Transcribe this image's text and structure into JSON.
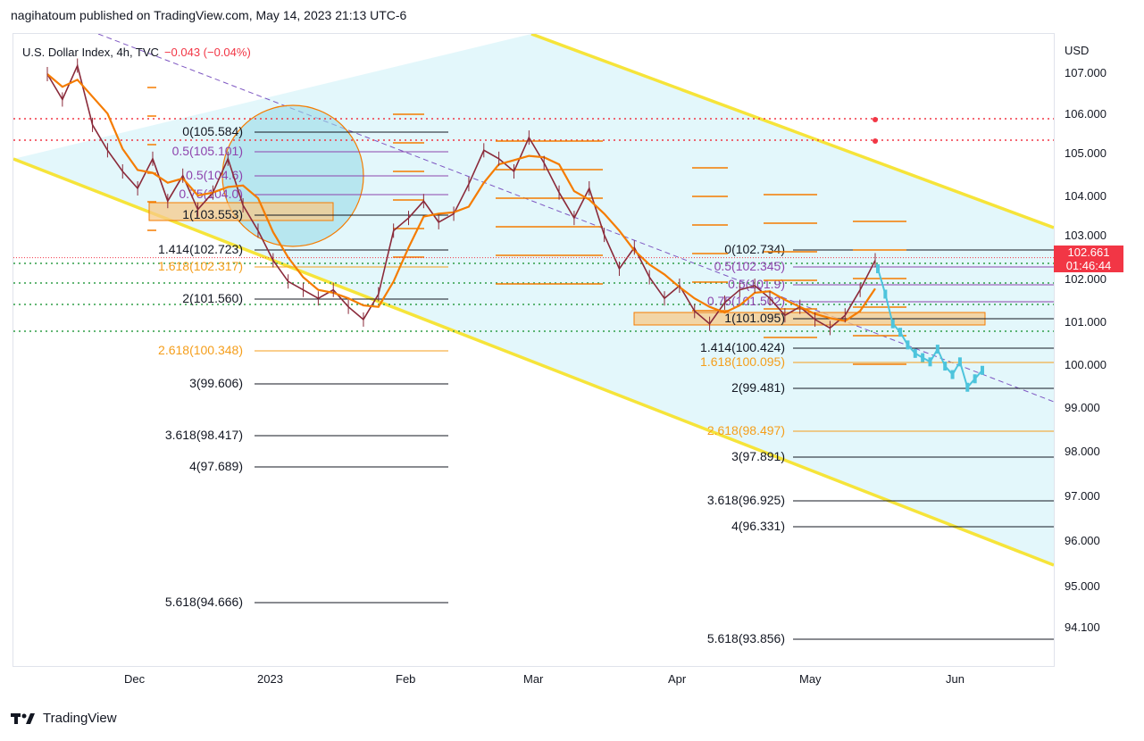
{
  "header": {
    "text": "nagihatoum published on TradingView.com, May 14, 2023 21:13 UTC-6"
  },
  "legend": {
    "symbol": "U.S. Dollar Index, 4h, TVC",
    "change": "−0.043 (−0.04%)"
  },
  "footer": {
    "brand": "TradingView"
  },
  "colors": {
    "channel": "#f6e43a",
    "fill": "#e3f7fb",
    "candle": "#8a2a3a",
    "ma": "#f57c00",
    "fib_black": "#131722",
    "fib_orange": "#f59e1b",
    "fib_purple": "#8e44ad",
    "dotted_red": "#f23645",
    "dotted_green": "#2e9e47",
    "projection": "#4dc4dc",
    "price_tag": "#f23645"
  },
  "chart_data": {
    "type": "line",
    "symbol": "U.S. Dollar Index",
    "timeframe": "4h",
    "currency_label": "USD",
    "y_ticks": [
      "107.000",
      "106.000",
      "105.000",
      "104.000",
      "103.000",
      "102.000",
      "101.000",
      "100.000",
      "99.000",
      "98.000",
      "97.000",
      "96.000",
      "95.000",
      "94.100"
    ],
    "x_ticks": [
      "Dec",
      "2023",
      "Feb",
      "Mar",
      "Apr",
      "May",
      "Jun"
    ],
    "last_price": "102.661",
    "countdown": "01:46:44",
    "series": [
      {
        "values": [
          107.0,
          106.4,
          107.2,
          105.8,
          105.2,
          104.7,
          104.3,
          105.0,
          104.0,
          104.6,
          103.8,
          104.2,
          105.0,
          103.9,
          103.3,
          102.6,
          102.1,
          101.9,
          101.7,
          101.9,
          101.5,
          101.2,
          101.8,
          103.3,
          103.6,
          104.0,
          103.5,
          103.7,
          104.4,
          105.2,
          105.0,
          104.7,
          105.5,
          104.9,
          104.2,
          103.6,
          104.3,
          103.2,
          102.4,
          102.9,
          102.2,
          101.7,
          102.0,
          101.4,
          101.1,
          101.6,
          101.9,
          102.0,
          101.7,
          101.3,
          101.5,
          101.2,
          101.0,
          101.3,
          101.9,
          102.6
        ]
      },
      {
        "values": [
          102.4,
          101.8,
          101.1,
          100.9,
          100.6,
          100.4,
          100.3,
          100.2,
          100.5,
          100.1,
          99.9,
          100.2,
          99.6,
          99.8,
          100.0
        ]
      }
    ],
    "fib_sets": [
      {
        "levels": [
          {
            "label": "0(105.584)"
          },
          {
            "label": "0.5(105.101)"
          },
          {
            "label": "0.5(104.6)"
          },
          {
            "label": "0.75(104.0)"
          },
          {
            "label": "1(103.553)"
          },
          {
            "label": "1.414(102.723)"
          },
          {
            "label": "1.618(102.317)"
          },
          {
            "label": "2(101.560)"
          },
          {
            "label": "2.618(100.348)"
          },
          {
            "label": "3(99.606)"
          },
          {
            "label": "3.618(98.417)"
          },
          {
            "label": "4(97.689)"
          },
          {
            "label": "5.618(94.666)"
          }
        ]
      },
      {
        "levels": [
          {
            "label": "0(102.734)"
          },
          {
            "label": "0.5(102.345)"
          },
          {
            "label": "0.5(101.9)"
          },
          {
            "label": "0.75(101.502)"
          },
          {
            "label": "1(101.095)"
          },
          {
            "label": "1.414(100.424)"
          },
          {
            "label": "1.618(100.095)"
          },
          {
            "label": "2(99.481)"
          },
          {
            "label": "2.618(98.497)"
          },
          {
            "label": "3(97.891)"
          },
          {
            "label": "3.618(96.925)"
          },
          {
            "label": "4(96.331)"
          },
          {
            "label": "5.618(93.856)"
          }
        ]
      }
    ]
  }
}
